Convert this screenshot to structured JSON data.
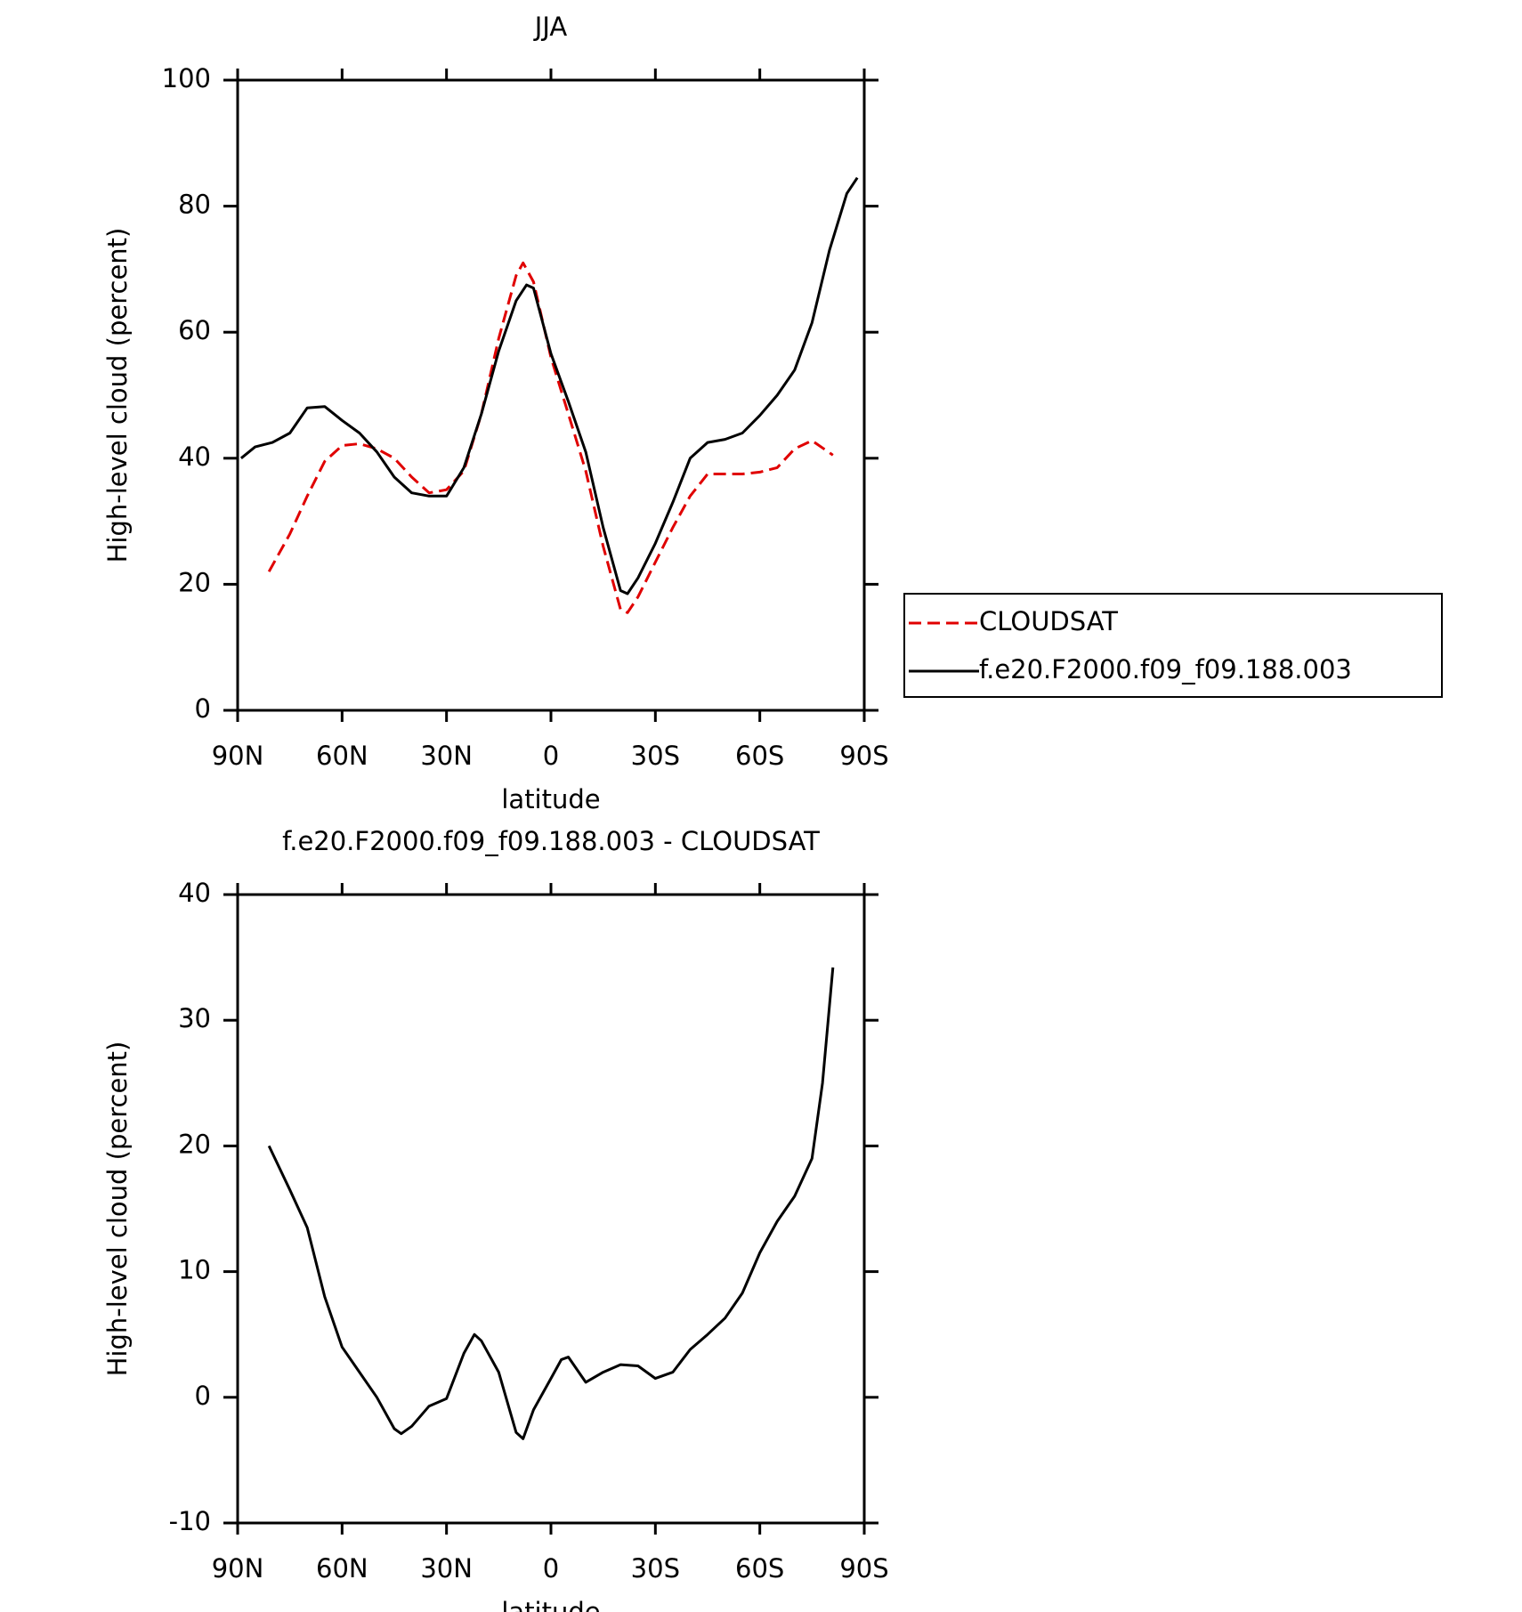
{
  "chart_data": [
    {
      "type": "line",
      "title": "JJA",
      "xlabel": "latitude",
      "ylabel": "High-level cloud (percent)",
      "xlim": [
        90,
        -90
      ],
      "xticks": [
        {
          "value": 90,
          "label": "90N"
        },
        {
          "value": 60,
          "label": "60N"
        },
        {
          "value": 30,
          "label": "30N"
        },
        0,
        {
          "value": -30,
          "label": "30S"
        },
        {
          "value": -60,
          "label": "60S"
        },
        {
          "value": -90,
          "label": "90S"
        }
      ],
      "ylim": [
        0,
        100
      ],
      "yticks": [
        0,
        20,
        40,
        60,
        80,
        100
      ],
      "legend": "outside-right",
      "series": [
        {
          "name": "CLOUDSAT",
          "color": "#e00000",
          "style": "dashed",
          "x": [
            81,
            75,
            70,
            65,
            60,
            55,
            50,
            45,
            40,
            35,
            30,
            25,
            20,
            15,
            10,
            8,
            5,
            0,
            -5,
            -10,
            -15,
            -20,
            -22,
            -25,
            -30,
            -35,
            -40,
            -45,
            -50,
            -55,
            -60,
            -65,
            -70,
            -75,
            -81
          ],
          "values": [
            22,
            28,
            34,
            39.5,
            42,
            42.3,
            41.5,
            40,
            37,
            34.5,
            35,
            38,
            47,
            59,
            69,
            71,
            68,
            56,
            47,
            38,
            26,
            16,
            15.5,
            18,
            23.5,
            29,
            34,
            37.5,
            37.5,
            37.5,
            37.8,
            38.5,
            41.5,
            42.8,
            40.5
          ]
        },
        {
          "name": "f.e20.F2000.f09_f09.188.003",
          "color": "#000000",
          "style": "solid",
          "x": [
            89,
            85,
            80,
            75,
            70,
            65,
            60,
            55,
            50,
            45,
            40,
            35,
            30,
            25,
            20,
            15,
            10,
            7,
            5,
            0,
            -5,
            -10,
            -15,
            -20,
            -22,
            -25,
            -30,
            -35,
            -40,
            -45,
            -50,
            -55,
            -60,
            -65,
            -70,
            -75,
            -80,
            -85,
            -88
          ],
          "values": [
            40,
            41.8,
            42.5,
            44,
            48,
            48.2,
            46,
            44,
            41,
            37,
            34.5,
            34,
            34,
            38.5,
            47,
            57,
            65,
            67.5,
            67,
            56.6,
            49,
            41,
            29,
            19,
            18.5,
            21,
            26.5,
            33,
            40,
            42.5,
            43,
            44,
            46.8,
            50,
            54,
            61.5,
            73,
            82,
            84.5
          ]
        }
      ]
    },
    {
      "type": "line",
      "title": "f.e20.F2000.f09_f09.188.003 - CLOUDSAT",
      "xlabel": "latitude",
      "ylabel": "High-level cloud (percent)",
      "xlim": [
        90,
        -90
      ],
      "xticks": [
        {
          "value": 90,
          "label": "90N"
        },
        {
          "value": 60,
          "label": "60N"
        },
        {
          "value": 30,
          "label": "30N"
        },
        0,
        {
          "value": -30,
          "label": "30S"
        },
        {
          "value": -60,
          "label": "60S"
        },
        {
          "value": -90,
          "label": "90S"
        }
      ],
      "ylim": [
        -10,
        40
      ],
      "yticks": [
        -10,
        0,
        10,
        20,
        30,
        40
      ],
      "series": [
        {
          "color": "#000000",
          "style": "solid",
          "x": [
            81,
            75,
            70,
            65,
            60,
            55,
            50,
            45,
            43,
            40,
            35,
            30,
            25,
            22,
            20,
            15,
            10,
            8,
            5,
            0,
            -3,
            -5,
            -10,
            -15,
            -20,
            -25,
            -30,
            -35,
            -40,
            -45,
            -50,
            -55,
            -60,
            -65,
            -70,
            -75,
            -78,
            -81
          ],
          "values": [
            20,
            16.5,
            13.5,
            8,
            4,
            2,
            0,
            -2.5,
            -2.9,
            -2.3,
            -0.7,
            -0.1,
            3.5,
            5,
            4.5,
            2,
            -2.8,
            -3.3,
            -1,
            1.5,
            3,
            3.2,
            1.2,
            2,
            2.6,
            2.5,
            1.5,
            2,
            3.8,
            5,
            6.3,
            8.3,
            11.5,
            14,
            16,
            19,
            25,
            34.2
          ]
        }
      ]
    }
  ]
}
